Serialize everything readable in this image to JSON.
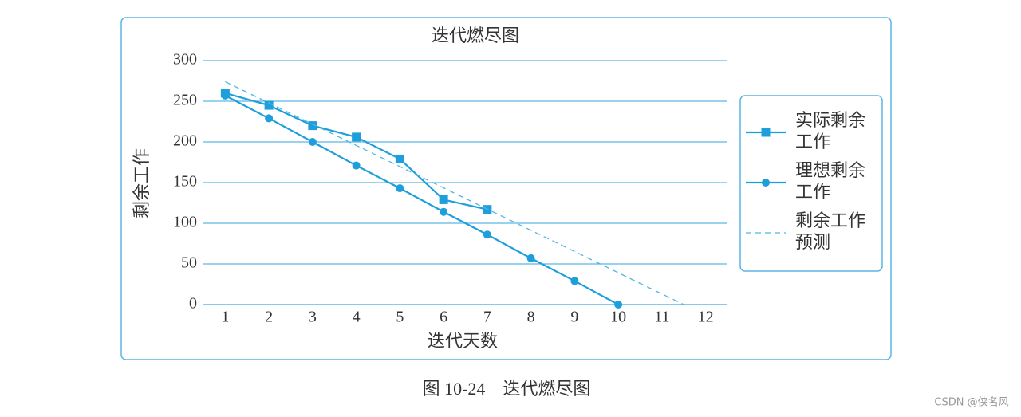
{
  "chart_data": {
    "type": "line",
    "title": "迭代燃尽图",
    "x_label": "迭代天数",
    "y_label": "剩余工作",
    "xlim": [
      0.5,
      12.5
    ],
    "xticks": [
      1,
      2,
      3,
      4,
      5,
      6,
      7,
      8,
      9,
      10,
      11,
      12
    ],
    "ylim": [
      0,
      300
    ],
    "yticks": [
      0,
      50,
      100,
      150,
      200,
      250,
      300
    ],
    "grid": true,
    "series": [
      {
        "name": "实际剩余工作",
        "color": "#1e9fdc",
        "marker": "square",
        "dashed": false,
        "x": [
          1,
          2,
          3,
          4,
          5,
          6,
          7
        ],
        "values": [
          260,
          245,
          220,
          206,
          179,
          129,
          117
        ]
      },
      {
        "name": "理想剩余工作",
        "color": "#1e9fdc",
        "marker": "circle",
        "dashed": false,
        "x": [
          1,
          2,
          3,
          4,
          5,
          6,
          7,
          8,
          9,
          10
        ],
        "values": [
          257,
          229,
          200,
          171,
          143,
          114,
          86,
          57,
          29,
          0
        ]
      },
      {
        "name": "剩余工作预测",
        "color": "#4fb6e6",
        "marker": "none",
        "dashed": true,
        "x": [
          1,
          11.5
        ],
        "values": [
          274,
          0
        ]
      }
    ]
  },
  "caption": "图 10-24　迭代燃尽图",
  "watermark": "CSDN @侠名风"
}
